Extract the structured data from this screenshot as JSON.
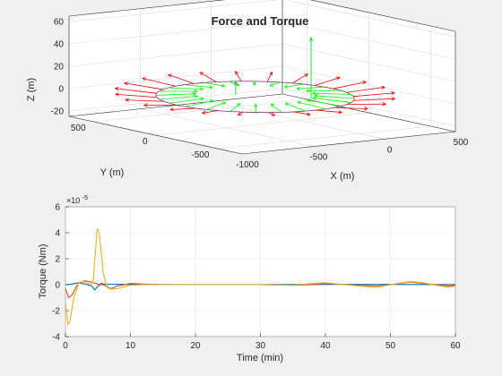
{
  "chart_data": [
    {
      "type": "3d-quiver",
      "title": "Force and Torque",
      "xlabel": "X (m)",
      "ylabel": "Y (m)",
      "zlabel": "Z (m)",
      "xlim": [
        -1000,
        500
      ],
      "ylim": [
        -700,
        700
      ],
      "zlim": [
        -25,
        65
      ],
      "xticks": [
        -1000,
        -500,
        0,
        500
      ],
      "yticks": [
        -500,
        0,
        500
      ],
      "zticks": [
        -20,
        0,
        20,
        40,
        60
      ],
      "grid": true,
      "colors": {
        "orbit": "#7e2f8e",
        "force_red": "#ff0000",
        "force_green": "#00ff00",
        "torque_green": "#00cc00"
      },
      "orbit_radius": 550,
      "red_arrow_count": 24
    },
    {
      "type": "line",
      "xlabel": "Time (min)",
      "ylabel": "Torque (Nm)",
      "exponent_label": "×10",
      "exponent_value": "-5",
      "xlim": [
        0,
        60
      ],
      "ylim": [
        -4,
        6
      ],
      "xticks": [
        0,
        10,
        20,
        30,
        40,
        50,
        60
      ],
      "yticks": [
        -4,
        -2,
        0,
        2,
        4,
        6
      ],
      "grid": true,
      "series": [
        {
          "color": "#0072bd",
          "x": [
            0,
            1,
            2,
            3,
            4,
            4.5,
            5,
            5.5,
            6,
            8,
            10,
            20,
            30,
            40,
            50,
            60
          ],
          "y": [
            0,
            0.05,
            0.15,
            0.05,
            -0.1,
            -0.4,
            -0.1,
            0.1,
            0.05,
            0.03,
            0.02,
            0.01,
            0.01,
            0.02,
            0.02,
            0.01
          ]
        },
        {
          "color": "#d95319",
          "x": [
            0,
            0.5,
            1,
            1.5,
            2,
            3,
            4,
            5,
            6,
            7,
            8,
            10,
            12,
            15,
            20,
            25,
            30,
            35,
            38,
            40,
            42,
            45,
            48,
            50,
            53,
            55,
            57,
            59,
            60
          ],
          "y": [
            -0.3,
            -1.0,
            -0.8,
            -0.3,
            0.1,
            0.3,
            0.2,
            0.05,
            -0.05,
            -0.3,
            -0.1,
            0.1,
            0.05,
            0,
            0,
            0,
            0,
            -0.05,
            0,
            0.1,
            0.05,
            -0.05,
            -0.1,
            0,
            0.2,
            0.1,
            0,
            -0.1,
            -0.05
          ]
        },
        {
          "color": "#edb120",
          "x": [
            0,
            0.4,
            0.7,
            1.2,
            2,
            2.5,
            3,
            3.5,
            4,
            4.3,
            4.6,
            4.9,
            5.2,
            5.5,
            5.8,
            6.2,
            6.7,
            7.2,
            8,
            9,
            10,
            12,
            15,
            20,
            25,
            30,
            35,
            38,
            40,
            42,
            45,
            48,
            50,
            53,
            55,
            57,
            59,
            60
          ],
          "y": [
            -1.5,
            -3.1,
            -2.8,
            -1.2,
            0.1,
            0.25,
            0.2,
            0.1,
            0.05,
            0.4,
            2.5,
            4.3,
            4.0,
            2.5,
            1.0,
            0.1,
            -0.3,
            -0.35,
            -0.3,
            -0.15,
            -0.05,
            0,
            0,
            0,
            0,
            0,
            -0.05,
            0.1,
            0.15,
            0.05,
            -0.1,
            -0.2,
            0,
            0.25,
            0.15,
            -0.05,
            -0.2,
            -0.1
          ]
        }
      ]
    }
  ]
}
